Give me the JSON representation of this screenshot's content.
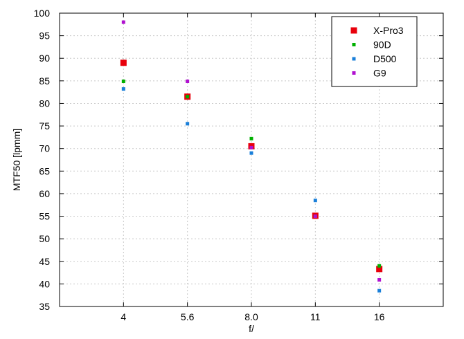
{
  "chart_data": {
    "type": "scatter",
    "title": "",
    "xlabel": "f/",
    "ylabel": "MTF50 [lpmm]",
    "categories": [
      "4",
      "5.6",
      "8.0",
      "11",
      "16"
    ],
    "ylim": [
      35,
      100
    ],
    "yticks": [
      35,
      40,
      45,
      50,
      55,
      60,
      65,
      70,
      75,
      80,
      85,
      90,
      95,
      100
    ],
    "grid": true,
    "legend_position": "top-right",
    "series": [
      {
        "name": "X-Pro3",
        "color": "#e8000b",
        "marker": "square-large",
        "values": [
          89.0,
          81.5,
          70.5,
          55.1,
          43.3
        ]
      },
      {
        "name": "90D",
        "color": "#00b000",
        "marker": "square-small",
        "values": [
          84.9,
          81.5,
          72.2,
          55.0,
          44.0
        ]
      },
      {
        "name": "D500",
        "color": "#1a7fd9",
        "marker": "square-small",
        "values": [
          83.2,
          75.5,
          69.0,
          58.5,
          38.5
        ]
      },
      {
        "name": "G9",
        "color": "#b010d0",
        "marker": "square-small",
        "values": [
          98.0,
          84.9,
          70.2,
          55.0,
          40.9
        ]
      }
    ]
  }
}
